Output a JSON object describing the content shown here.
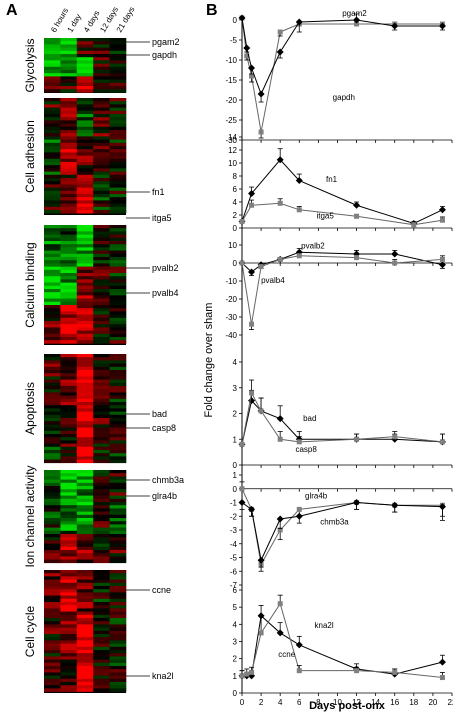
{
  "panel_labels": {
    "a": "A",
    "b": "B"
  },
  "heatmap": {
    "time_labels": [
      "6 hours",
      "1 day",
      "4 days",
      "12 days",
      "21 days"
    ],
    "categories": [
      {
        "name": "Glycolysis",
        "genes": [
          "pgam2",
          "gapdh"
        ]
      },
      {
        "name": "Cell adhesion",
        "genes": [
          "fn1",
          "itga5"
        ]
      },
      {
        "name": "Calcium binding",
        "genes": [
          "pvalb2",
          "pvalb4"
        ]
      },
      {
        "name": "Apoptosis",
        "genes": [
          "bad",
          "casp8"
        ]
      },
      {
        "name": "Ion channel activity",
        "genes": [
          "chmb3a",
          "glra4b"
        ]
      },
      {
        "name": "Cell cycle",
        "genes": [
          "ccne",
          "kna2l"
        ]
      }
    ],
    "colors": {
      "up": "#ff0000",
      "down": "#00e000",
      "neutral": "#000000"
    }
  },
  "shared_ylabel": "Fold change over sham",
  "shared_xlabel": "Days post-onx",
  "chart_data": [
    {
      "type": "line",
      "xlim": [
        0,
        22
      ],
      "ylim": [
        -30,
        0
      ],
      "yticks": [
        0,
        -5,
        -10,
        -15,
        -20,
        -25,
        -30
      ],
      "series": [
        {
          "name": "pgam2",
          "color": "#808080",
          "marker": "square",
          "x": [
            0,
            0.5,
            1,
            2,
            4,
            6,
            12,
            16,
            21
          ],
          "y": [
            0.5,
            -9,
            -14,
            -28,
            -3,
            -1,
            -1,
            -1,
            -1
          ],
          "err": [
            0,
            1,
            1.5,
            1.5,
            1,
            0.5,
            0.5,
            0.5,
            0.5
          ]
        },
        {
          "name": "gapdh",
          "color": "#000000",
          "marker": "diamond",
          "x": [
            0,
            0.5,
            1,
            2,
            4,
            6,
            12,
            16,
            21
          ],
          "y": [
            0.5,
            -7,
            -12,
            -18.5,
            -8,
            -0.5,
            0,
            -1.5,
            -1.5
          ],
          "err": [
            0,
            1,
            1.5,
            2,
            1.5,
            2.5,
            1.5,
            1,
            1
          ]
        }
      ]
    },
    {
      "type": "line",
      "xlim": [
        0,
        22
      ],
      "ylim": [
        0,
        14
      ],
      "yticks": [
        0,
        2,
        4,
        6,
        8,
        10,
        12,
        14
      ],
      "series": [
        {
          "name": "fn1",
          "color": "#000000",
          "marker": "diamond",
          "x": [
            0,
            1,
            4,
            6,
            12,
            18,
            21
          ],
          "y": [
            1,
            5.3,
            10.5,
            7.3,
            3.5,
            0.7,
            2.8
          ],
          "err": [
            0,
            1,
            1.7,
            1,
            0.5,
            0.3,
            0.5
          ]
        },
        {
          "name": "itga5",
          "color": "#808080",
          "marker": "square",
          "x": [
            0,
            1,
            4,
            6,
            12,
            18,
            21
          ],
          "y": [
            1,
            3.5,
            3.8,
            2.8,
            1.8,
            0.5,
            1.2
          ],
          "err": [
            0,
            0.8,
            0.7,
            0.5,
            0.3,
            0.2,
            0.5
          ]
        }
      ]
    },
    {
      "type": "line",
      "xlim": [
        0,
        22
      ],
      "ylim": [
        -40,
        10
      ],
      "yticks": [
        10,
        0,
        -10,
        -20,
        -30,
        -40
      ],
      "series": [
        {
          "name": "pvalb2",
          "color": "#000000",
          "marker": "diamond",
          "x": [
            0,
            1,
            2,
            4,
            6,
            12,
            16,
            21
          ],
          "y": [
            0,
            -5,
            -1,
            2,
            6,
            5,
            5,
            -1
          ],
          "err": [
            0,
            2,
            1,
            1,
            2,
            2,
            2,
            2
          ]
        },
        {
          "name": "pvalb4",
          "color": "#808080",
          "marker": "square",
          "x": [
            0,
            1,
            2,
            4,
            6,
            12,
            16,
            21
          ],
          "y": [
            0,
            -34,
            -2,
            2,
            4,
            3,
            0,
            2
          ],
          "err": [
            0,
            3,
            1,
            1,
            2,
            2,
            2,
            2
          ]
        }
      ]
    },
    {
      "type": "line",
      "xlim": [
        0,
        22
      ],
      "ylim": [
        0,
        4
      ],
      "yticks": [
        0,
        1,
        2,
        3,
        4
      ],
      "series": [
        {
          "name": "bad",
          "color": "#000000",
          "marker": "diamond",
          "x": [
            0,
            1,
            2,
            4,
            6,
            12,
            16,
            21
          ],
          "y": [
            0.8,
            2.5,
            2.1,
            1.8,
            1.0,
            1.0,
            1.0,
            0.9
          ],
          "err": [
            0,
            0.4,
            0.5,
            0.5,
            0.3,
            0.2,
            0.2,
            0.3
          ]
        },
        {
          "name": "casp8",
          "color": "#808080",
          "marker": "square",
          "x": [
            0,
            1,
            2,
            4,
            6,
            12,
            16,
            21
          ],
          "y": [
            0.8,
            2.8,
            2.1,
            1.0,
            0.9,
            1.0,
            1.1,
            0.9
          ],
          "err": [
            0,
            0.5,
            0.5,
            0.3,
            0.2,
            0.2,
            0.2,
            0.3
          ]
        }
      ]
    },
    {
      "type": "line",
      "xlim": [
        0,
        22
      ],
      "ylim": [
        -7,
        1
      ],
      "yticks": [
        1,
        0,
        -1,
        -2,
        -3,
        -4,
        -5,
        -6,
        -7
      ],
      "series": [
        {
          "name": "glra4b",
          "color": "#808080",
          "marker": "square",
          "x": [
            0,
            1,
            2,
            4,
            6,
            12,
            16,
            21
          ],
          "y": [
            0,
            -1.5,
            -5.5,
            -3,
            -1.5,
            -1,
            -1.2,
            -1.2
          ],
          "err": [
            0.5,
            0.5,
            0.5,
            0.7,
            0.5,
            0.5,
            0.5,
            0.8
          ]
        },
        {
          "name": "chmb3a",
          "color": "#000000",
          "marker": "diamond",
          "x": [
            0,
            1,
            2,
            4,
            6,
            12,
            16,
            21
          ],
          "y": [
            -1,
            -1.5,
            -5.2,
            -2.2,
            -2,
            -1,
            -1.2,
            -1.3
          ],
          "err": [
            0.5,
            0.5,
            0.5,
            0.7,
            0.5,
            0.5,
            0.5,
            1
          ]
        }
      ]
    },
    {
      "type": "line",
      "xlim": [
        0,
        22
      ],
      "ylim": [
        0,
        6
      ],
      "yticks": [
        0,
        1,
        2,
        3,
        4,
        5,
        6
      ],
      "series": [
        {
          "name": "kna2l",
          "color": "#000000",
          "marker": "diamond",
          "x": [
            0,
            0.5,
            1,
            2,
            4,
            6,
            12,
            16,
            21
          ],
          "y": [
            1,
            1,
            1,
            4.5,
            3.5,
            2.8,
            1.4,
            1.1,
            1.8
          ],
          "err": [
            0.3,
            0.2,
            0.2,
            0.6,
            0.6,
            0.5,
            0.3,
            0.3,
            0.4
          ]
        },
        {
          "name": "ccne",
          "color": "#808080",
          "marker": "square",
          "x": [
            0,
            0.5,
            1,
            2,
            4,
            6,
            12,
            16,
            21
          ],
          "y": [
            1,
            1.1,
            1.2,
            3.5,
            5.2,
            1.3,
            1.3,
            1.2,
            0.9
          ],
          "err": [
            0.3,
            0.3,
            0.3,
            1,
            0.5,
            0.3,
            0.2,
            0.2,
            0.3
          ]
        }
      ]
    }
  ],
  "xticks": [
    0,
    2,
    4,
    6,
    8,
    10,
    12,
    14,
    16,
    18,
    20,
    22
  ]
}
